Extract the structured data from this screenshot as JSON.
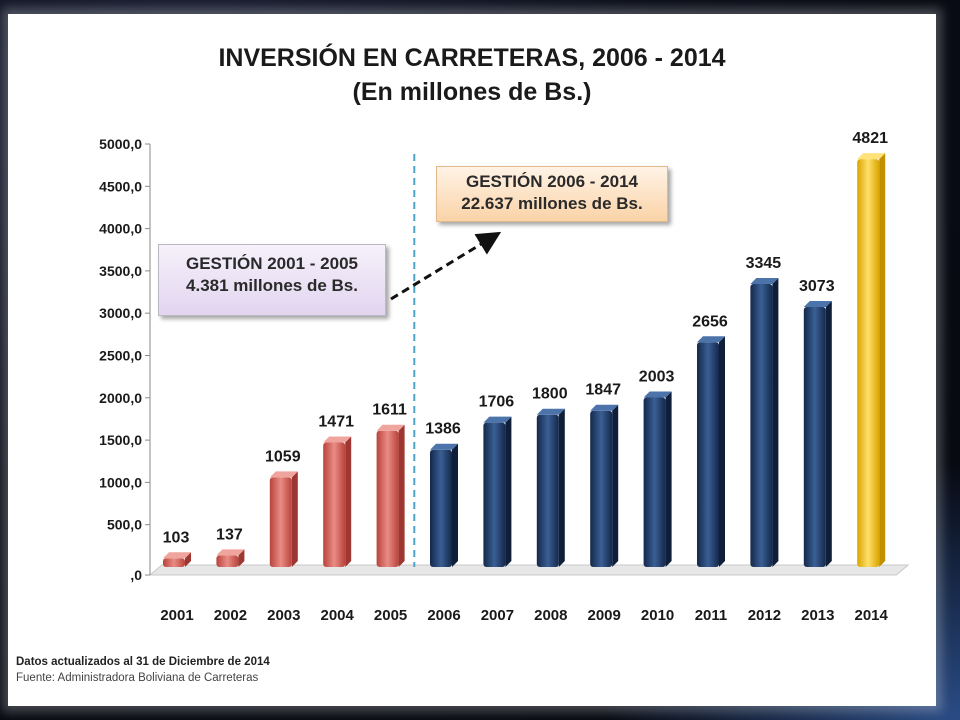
{
  "chart_data": {
    "type": "bar",
    "title": "INVERSIÓN EN CARRETERAS, 2006 - 2014",
    "subtitle": "(En millones de Bs.)",
    "xlabel": "",
    "ylabel": "",
    "categories": [
      "2001",
      "2002",
      "2003",
      "2004",
      "2005",
      "2006",
      "2007",
      "2008",
      "2009",
      "2010",
      "2011",
      "2012",
      "2013",
      "2014"
    ],
    "values": [
      103,
      137,
      1059,
      1471,
      1611,
      1386,
      1706,
      1800,
      1847,
      2003,
      2656,
      3345,
      3073,
      4821
    ],
    "ylim": [
      0,
      5000
    ],
    "yticks": [
      ",0",
      "500,0",
      "1000,0",
      "1500,0",
      "2000,0",
      "2500,0",
      "3000,0",
      "3500,0",
      "4000,0",
      "4500,0",
      "5000,0"
    ],
    "grid": false,
    "legend": "none",
    "colors": {
      "2001-2005": "#d9645d",
      "2006-2013": "#1f3a66",
      "2014": "#f2c10f"
    }
  },
  "annotations": {
    "gestion_2001": {
      "line1": "GESTIÓN 2001 - 2005",
      "line2": "4.381 millones de Bs."
    },
    "gestion_2006": {
      "line1": "GESTIÓN 2006 - 2014",
      "line2": "22.637 millones de Bs."
    }
  },
  "footer": {
    "updated": "Datos actualizados al 31 de Diciembre de 2014",
    "source": "Fuente: Administradora Boliviana de Carreteras"
  }
}
